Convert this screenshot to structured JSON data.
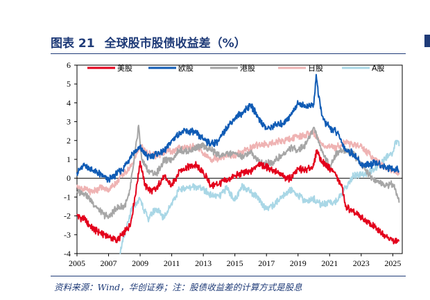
{
  "figure": {
    "label": "图表 21",
    "title": "全球股市股债收益差（%）",
    "source": "资料来源：Wind，华创证券；注：股债收益差的计算方式是股息"
  },
  "chart_data": {
    "type": "line",
    "title": "全球股市股债收益差（%）",
    "xlabel": "",
    "ylabel": "",
    "xlim": [
      2005,
      2025.6
    ],
    "ylim": [
      -4,
      6
    ],
    "x_ticks": [
      "2005",
      "2007",
      "2009",
      "2011",
      "2013",
      "2015",
      "2017",
      "2019",
      "2021",
      "2023",
      "2025"
    ],
    "y_ticks": [
      "6",
      "5",
      "4",
      "3",
      "2",
      "1",
      "0",
      "-1",
      "-2",
      "-3",
      "-4"
    ],
    "legend_position": "top",
    "series": [
      {
        "name": "美股",
        "color": "#e3001b",
        "x": [
          2005,
          2005.5,
          2006,
          2006.5,
          2007,
          2007.5,
          2008,
          2008.4,
          2008.8,
          2009,
          2009.3,
          2009.7,
          2010,
          2010.5,
          2011,
          2011.5,
          2012,
          2012.5,
          2013,
          2013.5,
          2014,
          2014.5,
          2015,
          2015.5,
          2016,
          2016.5,
          2017,
          2017.5,
          2018,
          2018.5,
          2019,
          2019.5,
          2020,
          2020.2,
          2020.5,
          2021,
          2021.3,
          2021.8,
          2022,
          2022.5,
          2023,
          2023.5,
          2024,
          2024.5,
          2025,
          2025.4
        ],
        "y": [
          -2.0,
          -2.2,
          -2.7,
          -2.9,
          -3.1,
          -3.3,
          -2.9,
          -2.4,
          -0.3,
          0.9,
          -0.4,
          -0.7,
          -0.6,
          0.1,
          -0.4,
          0.4,
          0.6,
          0.7,
          0.3,
          -0.4,
          -0.3,
          -0.1,
          0.1,
          0.3,
          0.3,
          0.8,
          0.6,
          0.4,
          0.1,
          0.0,
          0.5,
          0.4,
          0.7,
          1.5,
          0.9,
          0.5,
          0.3,
          -0.5,
          -1.5,
          -1.8,
          -2.1,
          -2.4,
          -2.7,
          -3.0,
          -3.3,
          -3.3
        ]
      },
      {
        "name": "欧股",
        "color": "#0f5bb5",
        "x": [
          2005,
          2005.5,
          2006,
          2006.5,
          2007,
          2007.5,
          2008,
          2008.5,
          2009,
          2009.5,
          2010,
          2010.5,
          2011,
          2011.5,
          2012,
          2012.5,
          2013,
          2013.5,
          2014,
          2014.5,
          2015,
          2015.5,
          2016,
          2016.5,
          2017,
          2017.5,
          2018,
          2018.5,
          2019,
          2019.5,
          2020,
          2020.15,
          2020.3,
          2020.6,
          2021,
          2021.5,
          2022,
          2022.5,
          2023,
          2023.5,
          2024,
          2024.5,
          2025,
          2025.4
        ],
        "y": [
          0.3,
          0.7,
          0.4,
          0.2,
          -0.1,
          0.2,
          0.6,
          1.3,
          1.6,
          1.1,
          1.3,
          1.4,
          2.0,
          2.4,
          2.5,
          2.4,
          2.1,
          1.8,
          2.0,
          2.7,
          3.2,
          3.5,
          3.9,
          3.2,
          2.6,
          2.8,
          2.9,
          3.3,
          4.0,
          3.8,
          3.9,
          5.5,
          4.3,
          3.1,
          2.7,
          2.4,
          1.5,
          1.3,
          0.7,
          0.7,
          0.8,
          0.6,
          0.5,
          0.4
        ]
      },
      {
        "name": "港股",
        "color": "#a6a6a6",
        "x": [
          2005,
          2005.5,
          2006,
          2006.5,
          2007,
          2007.5,
          2008,
          2008.3,
          2008.6,
          2008.9,
          2009.1,
          2009.5,
          2010,
          2010.5,
          2011,
          2011.5,
          2012,
          2012.5,
          2013,
          2013.5,
          2014,
          2014.5,
          2015,
          2015.5,
          2016,
          2016.5,
          2017,
          2017.5,
          2018,
          2018.5,
          2019,
          2019.5,
          2020,
          2020.5,
          2021,
          2021.5,
          2022,
          2022.5,
          2023,
          2023.5,
          2024,
          2024.5,
          2025,
          2025.4
        ],
        "y": [
          -0.7,
          -0.8,
          -1.3,
          -1.8,
          -2.1,
          -1.6,
          -1.5,
          -0.9,
          0.8,
          2.8,
          1.0,
          0.4,
          0.2,
          0.9,
          1.0,
          1.5,
          1.4,
          1.6,
          1.7,
          1.5,
          1.2,
          1.3,
          1.3,
          1.1,
          1.4,
          0.9,
          0.8,
          0.9,
          1.2,
          1.6,
          1.5,
          1.8,
          2.7,
          1.5,
          0.6,
          1.4,
          1.5,
          1.3,
          0.8,
          0.2,
          -0.2,
          -0.4,
          -0.3,
          -1.3
        ]
      },
      {
        "name": "日股",
        "color": "#efb3b3",
        "x": [
          2005,
          2005.5,
          2006,
          2006.5,
          2007,
          2007.5,
          2008,
          2008.4,
          2008.8,
          2009,
          2009.5,
          2010,
          2010.5,
          2011,
          2011.5,
          2012,
          2012.5,
          2013,
          2013.5,
          2014,
          2014.5,
          2015,
          2015.5,
          2016,
          2016.5,
          2017,
          2017.5,
          2018,
          2018.5,
          2019,
          2019.5,
          2020,
          2020.5,
          2021,
          2021.5,
          2022,
          2022.5,
          2023,
          2023.5,
          2024,
          2024.5,
          2025,
          2025.4
        ],
        "y": [
          -0.5,
          -0.6,
          -0.7,
          -0.5,
          -0.6,
          -0.2,
          0.3,
          0.6,
          1.3,
          1.7,
          1.3,
          1.2,
          1.4,
          1.4,
          1.6,
          1.6,
          1.7,
          1.3,
          1.0,
          1.1,
          1.2,
          1.2,
          1.4,
          1.6,
          1.8,
          1.8,
          1.9,
          2.0,
          2.1,
          2.2,
          2.3,
          2.4,
          1.8,
          1.6,
          1.7,
          1.9,
          1.8,
          1.7,
          1.3,
          0.9,
          0.6,
          0.4,
          0.2
        ]
      },
      {
        "name": "A股",
        "color": "#a9d7e6",
        "x": [
          2007.7,
          2008,
          2008.5,
          2009,
          2009.5,
          2010,
          2010.5,
          2011,
          2011.5,
          2012,
          2012.5,
          2013,
          2013.5,
          2014,
          2014.5,
          2015,
          2015.5,
          2016,
          2016.5,
          2017,
          2017.5,
          2018,
          2018.5,
          2019,
          2019.5,
          2020,
          2020.5,
          2021,
          2021.5,
          2022,
          2022.5,
          2023,
          2023.5,
          2024,
          2024.5,
          2025,
          2025.2,
          2025.4
        ],
        "y": [
          -4.0,
          -3.1,
          -1.6,
          -1.1,
          -2.2,
          -1.6,
          -2.1,
          -1.3,
          -0.6,
          -0.5,
          -0.4,
          -0.6,
          -0.9,
          -1.0,
          -0.5,
          -1.2,
          -0.4,
          -0.7,
          -1.1,
          -1.6,
          -1.4,
          -1.0,
          -0.6,
          -0.9,
          -1.2,
          -1.1,
          -1.4,
          -1.3,
          -1.2,
          -0.5,
          0.1,
          0.2,
          0.3,
          0.6,
          1.0,
          1.4,
          2.0,
          1.7
        ]
      }
    ]
  }
}
